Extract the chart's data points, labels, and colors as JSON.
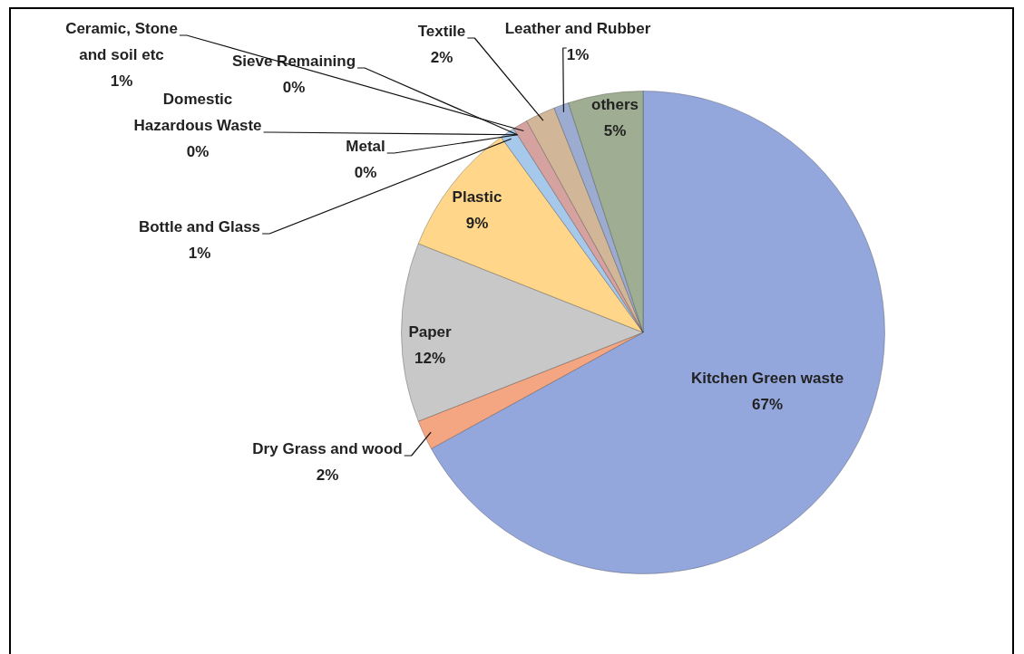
{
  "chart_data": {
    "type": "pie",
    "categories": [
      "Kitchen Green waste",
      "Dry Grass and wood",
      "Paper",
      "Plastic",
      "Bottle and Glass",
      "Metal",
      "Domestic Hazardous Waste",
      "Sieve Remaining",
      "Ceramic, Stone and soil etc",
      "Textile",
      "Leather and Rubber",
      "others"
    ],
    "values": [
      67,
      2,
      12,
      9,
      1,
      0,
      0,
      0,
      1,
      2,
      1,
      5
    ],
    "value_labels": [
      "67%",
      "2%",
      "12%",
      "9%",
      "1%",
      "0%",
      "0%",
      "0%",
      "1%",
      "2%",
      "1%",
      "5%"
    ],
    "colors": [
      "#94a7dd",
      "#f4a582",
      "#c8c8c8",
      "#ffd68a",
      "#a6c8ea",
      "#4f7a52",
      "#7a8fb5",
      "#9aa0a8",
      "#d6a2a0",
      "#d2b698",
      "#9cacd0",
      "#9fae92"
    ],
    "legend": false
  }
}
